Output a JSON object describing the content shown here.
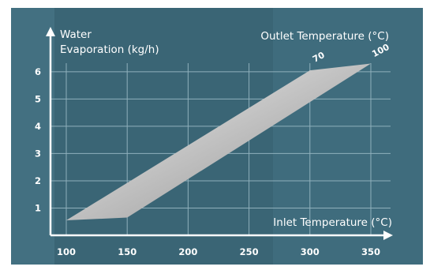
{
  "chart_data": {
    "type": "area",
    "title": "",
    "ylabel_lines": [
      "Water",
      "Evaporation (kg/h)"
    ],
    "xlabel": "Inlet Temperature (°C)",
    "legend_title": "Outlet Temperature (°C)",
    "xlim": [
      100,
      350
    ],
    "ylim": [
      0,
      6.3
    ],
    "x_ticks": [
      100,
      150,
      200,
      250,
      300,
      350
    ],
    "y_ticks": [
      1,
      2,
      3,
      4,
      5,
      6
    ],
    "grid": true,
    "band": {
      "upper": {
        "x": [
          100,
          300,
          350
        ],
        "y": [
          0.55,
          6.05,
          6.3
        ]
      },
      "lower": {
        "x": [
          100,
          150,
          350
        ],
        "y": [
          0.55,
          0.65,
          6.3
        ]
      }
    },
    "series": [
      {
        "name": "70",
        "label_anchor": {
          "x": 300,
          "y": 6.05
        }
      },
      {
        "name": "100",
        "label_anchor": {
          "x": 350,
          "y": 6.3
        }
      }
    ]
  },
  "colors": {
    "background": "#3a6575",
    "panel_left": "#4a7a8a",
    "panel_right": "#4b7b8b",
    "grid": "#8fb0bc",
    "axis": "#ffffff",
    "band_light": "#f2f2f2",
    "band_dark": "#8d8d8d"
  }
}
